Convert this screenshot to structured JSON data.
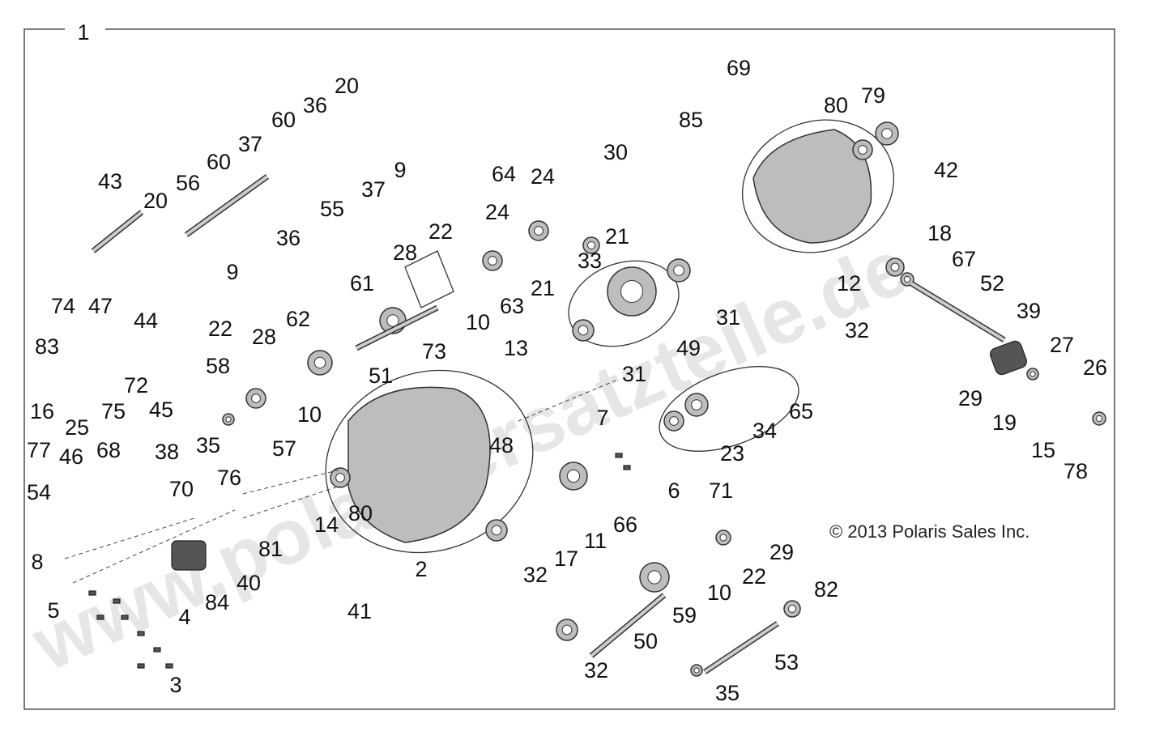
{
  "diagram": {
    "callouts": [
      "1",
      "69",
      "80",
      "79",
      "85",
      "42",
      "20",
      "36",
      "60",
      "37",
      "60",
      "56",
      "43",
      "20",
      "9",
      "37",
      "55",
      "36",
      "9",
      "30",
      "64",
      "24",
      "24",
      "22",
      "28",
      "21",
      "33",
      "21",
      "63",
      "10",
      "73",
      "61",
      "62",
      "22",
      "28",
      "58",
      "51",
      "10",
      "35",
      "13",
      "7",
      "48",
      "57",
      "76",
      "14",
      "80",
      "81",
      "40",
      "84",
      "2",
      "41",
      "18",
      "67",
      "12",
      "52",
      "32",
      "39",
      "31",
      "49",
      "31",
      "27",
      "26",
      "29",
      "19",
      "15",
      "78",
      "65",
      "34",
      "23",
      "6",
      "71",
      "66",
      "11",
      "17",
      "32",
      "29",
      "22",
      "10",
      "59",
      "50",
      "32",
      "82",
      "53",
      "35",
      "74",
      "47",
      "44",
      "83",
      "72",
      "16",
      "25",
      "75",
      "45",
      "68",
      "38",
      "77",
      "46",
      "54",
      "70",
      "8",
      "5",
      "4",
      "3"
    ],
    "copyright": "© 2013 Polaris Sales Inc.",
    "watermark": "www.polarisersatzteile.de"
  }
}
